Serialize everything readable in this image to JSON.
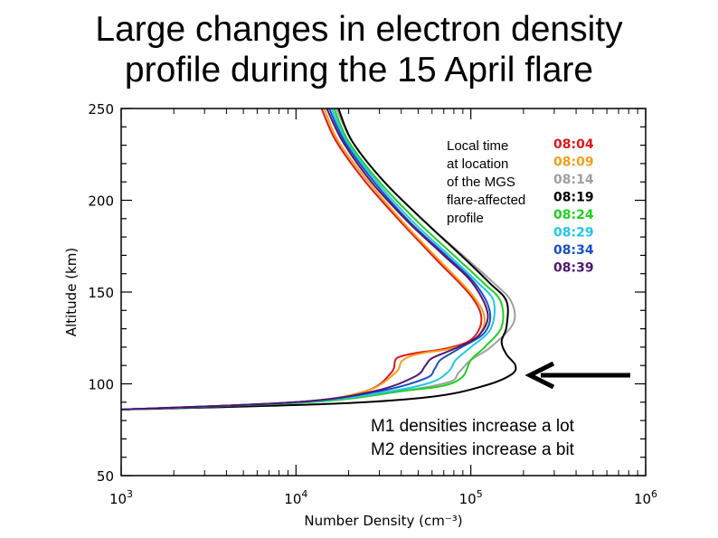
{
  "slide": {
    "title_line1": "Large changes in electron density",
    "title_line2": "profile during the 15 April flare"
  },
  "legend": {
    "caption_lines": [
      "Local time",
      "at location",
      "of the MGS",
      "flare-affected",
      "profile"
    ]
  },
  "annotation": {
    "line1": "M1 densities increase a lot",
    "line2": "M2 densities increase a bit"
  },
  "chart_data": {
    "type": "line",
    "xlabel": "Number Density (cm⁻³)",
    "ylabel": "Altitude (km)",
    "xscale": "log",
    "xlim": [
      1000,
      1000000
    ],
    "ylim": [
      50,
      250
    ],
    "xticks": [
      {
        "value": 1000,
        "label": "10",
        "exp": "3"
      },
      {
        "value": 10000,
        "label": "10",
        "exp": "4"
      },
      {
        "value": 100000,
        "label": "10",
        "exp": "5"
      },
      {
        "value": 1000000,
        "label": "10",
        "exp": "6"
      }
    ],
    "yticks": [
      50,
      100,
      150,
      200,
      250
    ],
    "grid": false,
    "legend_position": "top-right",
    "series": [
      {
        "name": "08:04",
        "color": "#e01818",
        "points": [
          [
            1000,
            86
          ],
          [
            10000,
            90
          ],
          [
            25000,
            96
          ],
          [
            35000,
            106
          ],
          [
            37000,
            113
          ],
          [
            40000,
            115
          ],
          [
            50000,
            117
          ],
          [
            70000,
            119
          ],
          [
            100000,
            124
          ],
          [
            115000,
            135
          ],
          [
            100000,
            148
          ],
          [
            63000,
            168
          ],
          [
            40000,
            188
          ],
          [
            25000,
            210
          ],
          [
            17000,
            232
          ],
          [
            14000,
            250
          ]
        ]
      },
      {
        "name": "08:09",
        "color": "#f0a020",
        "points": [
          [
            1000,
            86
          ],
          [
            10000,
            90
          ],
          [
            25000,
            96
          ],
          [
            37000,
            106
          ],
          [
            40000,
            112
          ],
          [
            45000,
            115
          ],
          [
            55000,
            117
          ],
          [
            75000,
            119
          ],
          [
            105000,
            124
          ],
          [
            120000,
            135
          ],
          [
            103000,
            148
          ],
          [
            65000,
            168
          ],
          [
            41000,
            188
          ],
          [
            26000,
            210
          ],
          [
            17500,
            232
          ],
          [
            14500,
            250
          ]
        ]
      },
      {
        "name": "08:14",
        "color": "#a0a0a0",
        "points": [
          [
            1000,
            86
          ],
          [
            12000,
            90
          ],
          [
            40000,
            96
          ],
          [
            75000,
            101
          ],
          [
            85000,
            106
          ],
          [
            100000,
            113
          ],
          [
            130000,
            120
          ],
          [
            175000,
            133
          ],
          [
            170000,
            145
          ],
          [
            135000,
            155
          ],
          [
            90000,
            170
          ],
          [
            55000,
            188
          ],
          [
            32000,
            210
          ],
          [
            21000,
            232
          ],
          [
            17000,
            250
          ]
        ]
      },
      {
        "name": "08:19",
        "color": "#000000",
        "points": [
          [
            1000,
            86
          ],
          [
            15000,
            89
          ],
          [
            60000,
            93
          ],
          [
            120000,
            99
          ],
          [
            170000,
            105
          ],
          [
            180000,
            110
          ],
          [
            160000,
            116
          ],
          [
            150000,
            123
          ],
          [
            160000,
            131
          ],
          [
            160000,
            145
          ],
          [
            128000,
            155
          ],
          [
            88000,
            170
          ],
          [
            55000,
            188
          ],
          [
            32000,
            210
          ],
          [
            21000,
            232
          ],
          [
            17500,
            250
          ]
        ]
      },
      {
        "name": "08:24",
        "color": "#20d020",
        "points": [
          [
            1000,
            86
          ],
          [
            12000,
            90
          ],
          [
            40000,
            96
          ],
          [
            70000,
            99
          ],
          [
            90000,
            104
          ],
          [
            100000,
            113
          ],
          [
            120000,
            120
          ],
          [
            150000,
            131
          ],
          [
            148000,
            145
          ],
          [
            118000,
            155
          ],
          [
            80000,
            170
          ],
          [
            50000,
            188
          ],
          [
            30000,
            210
          ],
          [
            20000,
            232
          ],
          [
            16500,
            250
          ]
        ]
      },
      {
        "name": "08:29",
        "color": "#20c8e8",
        "points": [
          [
            1000,
            86
          ],
          [
            11000,
            90
          ],
          [
            35000,
            96
          ],
          [
            60000,
            101
          ],
          [
            75000,
            107
          ],
          [
            82000,
            113
          ],
          [
            100000,
            120
          ],
          [
            130000,
            130
          ],
          [
            135000,
            145
          ],
          [
            110000,
            155
          ],
          [
            75000,
            170
          ],
          [
            47000,
            188
          ],
          [
            29000,
            210
          ],
          [
            19500,
            232
          ],
          [
            16000,
            250
          ]
        ]
      },
      {
        "name": "08:34",
        "color": "#1850c8",
        "points": [
          [
            1000,
            86
          ],
          [
            10000,
            90
          ],
          [
            30000,
            96
          ],
          [
            55000,
            103
          ],
          [
            62000,
            108
          ],
          [
            67000,
            113
          ],
          [
            85000,
            119
          ],
          [
            120000,
            128
          ],
          [
            128000,
            140
          ],
          [
            105000,
            155
          ],
          [
            72000,
            170
          ],
          [
            45000,
            188
          ],
          [
            28000,
            210
          ],
          [
            19000,
            232
          ],
          [
            15500,
            250
          ]
        ]
      },
      {
        "name": "08:39",
        "color": "#501870",
        "points": [
          [
            1000,
            86
          ],
          [
            10000,
            90
          ],
          [
            28000,
            96
          ],
          [
            48000,
            104
          ],
          [
            55000,
            110
          ],
          [
            60000,
            114
          ],
          [
            80000,
            119
          ],
          [
            110000,
            126
          ],
          [
            125000,
            138
          ],
          [
            102000,
            155
          ],
          [
            70000,
            170
          ],
          [
            44000,
            188
          ],
          [
            27000,
            210
          ],
          [
            18500,
            232
          ],
          [
            15000,
            250
          ]
        ]
      }
    ]
  }
}
